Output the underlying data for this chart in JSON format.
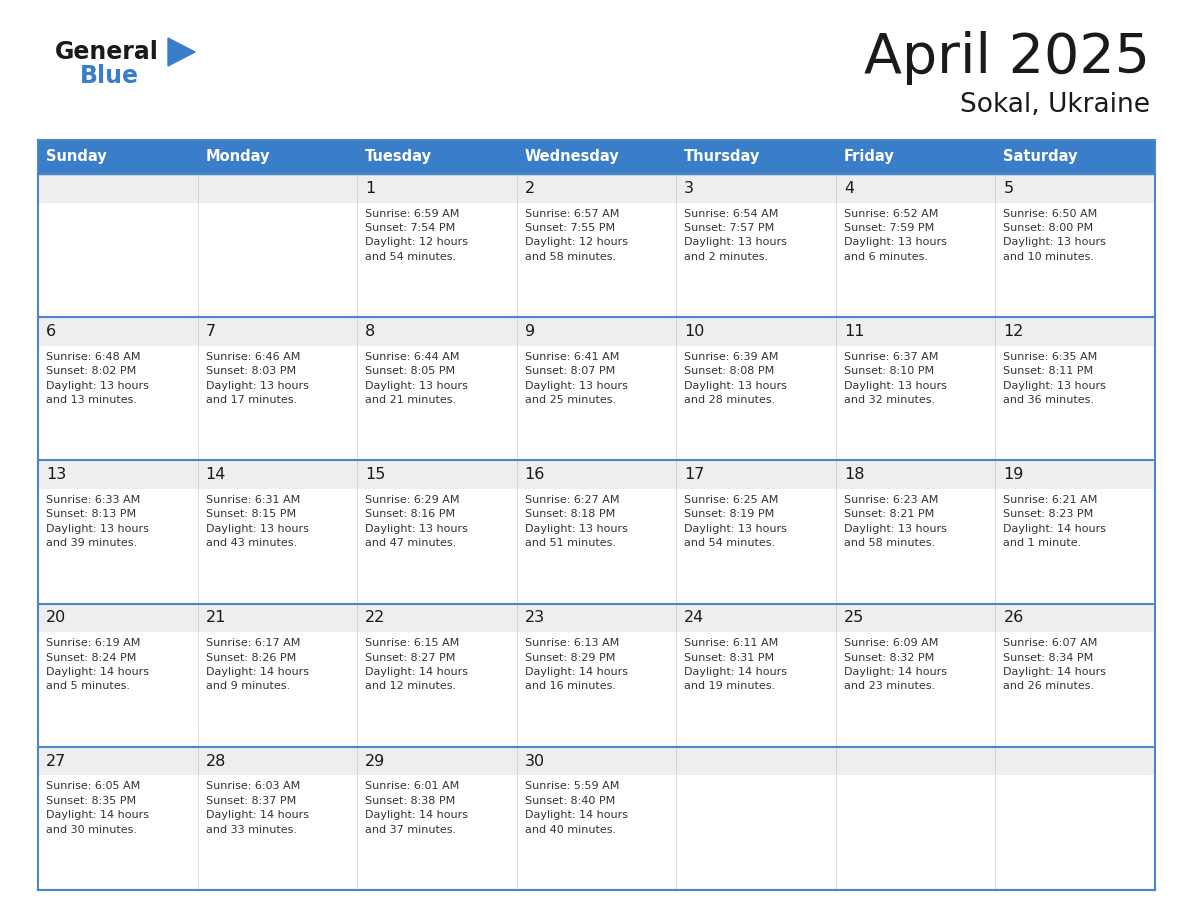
{
  "title": "April 2025",
  "subtitle": "Sokal, Ukraine",
  "header_color": "#3A7DC9",
  "header_text_color": "#FFFFFF",
  "cell_bg_white": "#FFFFFF",
  "cell_bg_gray": "#F0F0F0",
  "border_color": "#4A86C8",
  "grid_color": "#CCCCCC",
  "text_color": "#333333",
  "day_num_color": "#1a1a1a",
  "days_of_week": [
    "Sunday",
    "Monday",
    "Tuesday",
    "Wednesday",
    "Thursday",
    "Friday",
    "Saturday"
  ],
  "calendar": [
    [
      {
        "day": "",
        "info": ""
      },
      {
        "day": "",
        "info": ""
      },
      {
        "day": "1",
        "info": "Sunrise: 6:59 AM\nSunset: 7:54 PM\nDaylight: 12 hours\nand 54 minutes."
      },
      {
        "day": "2",
        "info": "Sunrise: 6:57 AM\nSunset: 7:55 PM\nDaylight: 12 hours\nand 58 minutes."
      },
      {
        "day": "3",
        "info": "Sunrise: 6:54 AM\nSunset: 7:57 PM\nDaylight: 13 hours\nand 2 minutes."
      },
      {
        "day": "4",
        "info": "Sunrise: 6:52 AM\nSunset: 7:59 PM\nDaylight: 13 hours\nand 6 minutes."
      },
      {
        "day": "5",
        "info": "Sunrise: 6:50 AM\nSunset: 8:00 PM\nDaylight: 13 hours\nand 10 minutes."
      }
    ],
    [
      {
        "day": "6",
        "info": "Sunrise: 6:48 AM\nSunset: 8:02 PM\nDaylight: 13 hours\nand 13 minutes."
      },
      {
        "day": "7",
        "info": "Sunrise: 6:46 AM\nSunset: 8:03 PM\nDaylight: 13 hours\nand 17 minutes."
      },
      {
        "day": "8",
        "info": "Sunrise: 6:44 AM\nSunset: 8:05 PM\nDaylight: 13 hours\nand 21 minutes."
      },
      {
        "day": "9",
        "info": "Sunrise: 6:41 AM\nSunset: 8:07 PM\nDaylight: 13 hours\nand 25 minutes."
      },
      {
        "day": "10",
        "info": "Sunrise: 6:39 AM\nSunset: 8:08 PM\nDaylight: 13 hours\nand 28 minutes."
      },
      {
        "day": "11",
        "info": "Sunrise: 6:37 AM\nSunset: 8:10 PM\nDaylight: 13 hours\nand 32 minutes."
      },
      {
        "day": "12",
        "info": "Sunrise: 6:35 AM\nSunset: 8:11 PM\nDaylight: 13 hours\nand 36 minutes."
      }
    ],
    [
      {
        "day": "13",
        "info": "Sunrise: 6:33 AM\nSunset: 8:13 PM\nDaylight: 13 hours\nand 39 minutes."
      },
      {
        "day": "14",
        "info": "Sunrise: 6:31 AM\nSunset: 8:15 PM\nDaylight: 13 hours\nand 43 minutes."
      },
      {
        "day": "15",
        "info": "Sunrise: 6:29 AM\nSunset: 8:16 PM\nDaylight: 13 hours\nand 47 minutes."
      },
      {
        "day": "16",
        "info": "Sunrise: 6:27 AM\nSunset: 8:18 PM\nDaylight: 13 hours\nand 51 minutes."
      },
      {
        "day": "17",
        "info": "Sunrise: 6:25 AM\nSunset: 8:19 PM\nDaylight: 13 hours\nand 54 minutes."
      },
      {
        "day": "18",
        "info": "Sunrise: 6:23 AM\nSunset: 8:21 PM\nDaylight: 13 hours\nand 58 minutes."
      },
      {
        "day": "19",
        "info": "Sunrise: 6:21 AM\nSunset: 8:23 PM\nDaylight: 14 hours\nand 1 minute."
      }
    ],
    [
      {
        "day": "20",
        "info": "Sunrise: 6:19 AM\nSunset: 8:24 PM\nDaylight: 14 hours\nand 5 minutes."
      },
      {
        "day": "21",
        "info": "Sunrise: 6:17 AM\nSunset: 8:26 PM\nDaylight: 14 hours\nand 9 minutes."
      },
      {
        "day": "22",
        "info": "Sunrise: 6:15 AM\nSunset: 8:27 PM\nDaylight: 14 hours\nand 12 minutes."
      },
      {
        "day": "23",
        "info": "Sunrise: 6:13 AM\nSunset: 8:29 PM\nDaylight: 14 hours\nand 16 minutes."
      },
      {
        "day": "24",
        "info": "Sunrise: 6:11 AM\nSunset: 8:31 PM\nDaylight: 14 hours\nand 19 minutes."
      },
      {
        "day": "25",
        "info": "Sunrise: 6:09 AM\nSunset: 8:32 PM\nDaylight: 14 hours\nand 23 minutes."
      },
      {
        "day": "26",
        "info": "Sunrise: 6:07 AM\nSunset: 8:34 PM\nDaylight: 14 hours\nand 26 minutes."
      }
    ],
    [
      {
        "day": "27",
        "info": "Sunrise: 6:05 AM\nSunset: 8:35 PM\nDaylight: 14 hours\nand 30 minutes."
      },
      {
        "day": "28",
        "info": "Sunrise: 6:03 AM\nSunset: 8:37 PM\nDaylight: 14 hours\nand 33 minutes."
      },
      {
        "day": "29",
        "info": "Sunrise: 6:01 AM\nSunset: 8:38 PM\nDaylight: 14 hours\nand 37 minutes."
      },
      {
        "day": "30",
        "info": "Sunrise: 5:59 AM\nSunset: 8:40 PM\nDaylight: 14 hours\nand 40 minutes."
      },
      {
        "day": "",
        "info": ""
      },
      {
        "day": "",
        "info": ""
      },
      {
        "day": "",
        "info": ""
      }
    ]
  ]
}
